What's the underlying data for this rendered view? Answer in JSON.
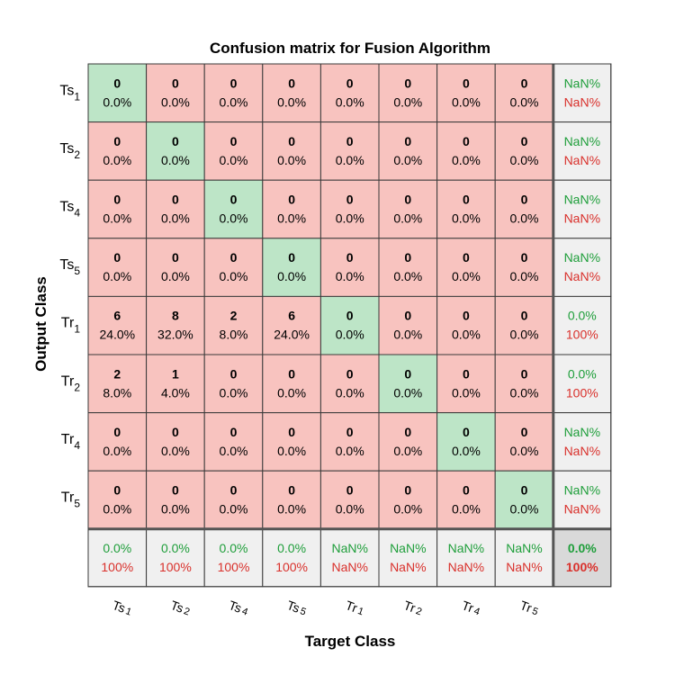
{
  "chart_data": {
    "type": "heatmap",
    "title": "Confusion matrix for Fusion Algorithm",
    "xlabel": "Target Class",
    "ylabel": "Output Class",
    "classes": [
      {
        "base": "Ts",
        "sub": "1"
      },
      {
        "base": "Ts",
        "sub": "2"
      },
      {
        "base": "Ts",
        "sub": "4"
      },
      {
        "base": "Ts",
        "sub": "5"
      },
      {
        "base": "Tr",
        "sub": "1"
      },
      {
        "base": "Tr",
        "sub": "2"
      },
      {
        "base": "Tr",
        "sub": "4"
      },
      {
        "base": "Tr",
        "sub": "5"
      }
    ],
    "counts": [
      [
        0,
        0,
        0,
        0,
        0,
        0,
        0,
        0
      ],
      [
        0,
        0,
        0,
        0,
        0,
        0,
        0,
        0
      ],
      [
        0,
        0,
        0,
        0,
        0,
        0,
        0,
        0
      ],
      [
        0,
        0,
        0,
        0,
        0,
        0,
        0,
        0
      ],
      [
        6,
        8,
        2,
        6,
        0,
        0,
        0,
        0
      ],
      [
        2,
        1,
        0,
        0,
        0,
        0,
        0,
        0
      ],
      [
        0,
        0,
        0,
        0,
        0,
        0,
        0,
        0
      ],
      [
        0,
        0,
        0,
        0,
        0,
        0,
        0,
        0
      ]
    ],
    "percents": [
      [
        "0.0%",
        "0.0%",
        "0.0%",
        "0.0%",
        "0.0%",
        "0.0%",
        "0.0%",
        "0.0%"
      ],
      [
        "0.0%",
        "0.0%",
        "0.0%",
        "0.0%",
        "0.0%",
        "0.0%",
        "0.0%",
        "0.0%"
      ],
      [
        "0.0%",
        "0.0%",
        "0.0%",
        "0.0%",
        "0.0%",
        "0.0%",
        "0.0%",
        "0.0%"
      ],
      [
        "0.0%",
        "0.0%",
        "0.0%",
        "0.0%",
        "0.0%",
        "0.0%",
        "0.0%",
        "0.0%"
      ],
      [
        "24.0%",
        "32.0%",
        "8.0%",
        "24.0%",
        "0.0%",
        "0.0%",
        "0.0%",
        "0.0%"
      ],
      [
        "8.0%",
        "4.0%",
        "0.0%",
        "0.0%",
        "0.0%",
        "0.0%",
        "0.0%",
        "0.0%"
      ],
      [
        "0.0%",
        "0.0%",
        "0.0%",
        "0.0%",
        "0.0%",
        "0.0%",
        "0.0%",
        "0.0%"
      ],
      [
        "0.0%",
        "0.0%",
        "0.0%",
        "0.0%",
        "0.0%",
        "0.0%",
        "0.0%",
        "0.0%"
      ]
    ],
    "row_summary": [
      {
        "correct": "NaN%",
        "incorrect": "NaN%"
      },
      {
        "correct": "NaN%",
        "incorrect": "NaN%"
      },
      {
        "correct": "NaN%",
        "incorrect": "NaN%"
      },
      {
        "correct": "NaN%",
        "incorrect": "NaN%"
      },
      {
        "correct": "0.0%",
        "incorrect": "100%"
      },
      {
        "correct": "0.0%",
        "incorrect": "100%"
      },
      {
        "correct": "NaN%",
        "incorrect": "NaN%"
      },
      {
        "correct": "NaN%",
        "incorrect": "NaN%"
      }
    ],
    "col_summary": [
      {
        "correct": "0.0%",
        "incorrect": "100%"
      },
      {
        "correct": "0.0%",
        "incorrect": "100%"
      },
      {
        "correct": "0.0%",
        "incorrect": "100%"
      },
      {
        "correct": "0.0%",
        "incorrect": "100%"
      },
      {
        "correct": "NaN%",
        "incorrect": "NaN%"
      },
      {
        "correct": "NaN%",
        "incorrect": "NaN%"
      },
      {
        "correct": "NaN%",
        "incorrect": "NaN%"
      },
      {
        "correct": "NaN%",
        "incorrect": "NaN%"
      }
    ],
    "overall": {
      "correct": "0.0%",
      "incorrect": "100%"
    },
    "colors": {
      "diagonal": "#bde5c7",
      "off_diagonal": "#f8c3bf",
      "summary": "#f0f0f0",
      "overall": "#d9d9d9",
      "correct_text": "#1e9e3a",
      "incorrect_text": "#d9302b",
      "grid": "#3a3a3a"
    }
  }
}
